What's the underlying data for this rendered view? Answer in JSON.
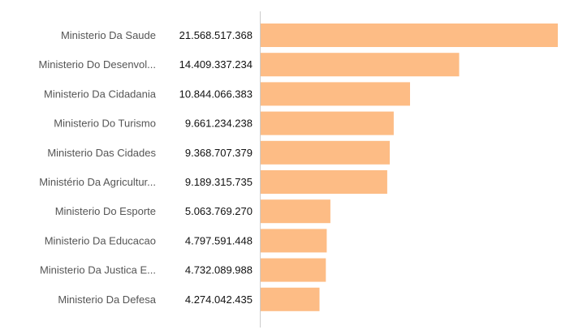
{
  "chart_data": {
    "type": "bar",
    "orientation": "horizontal",
    "categories": [
      "Ministerio Da Saude",
      "Ministerio Do Desenvol...",
      "Ministerio Da Cidadania",
      "Ministerio Do Turismo",
      "Ministerio Das Cidades",
      "Ministério Da Agricultur...",
      "Ministerio Do Esporte",
      "Ministerio Da Educacao",
      "Ministerio Da Justica E...",
      "Ministerio Da Defesa"
    ],
    "values": [
      21568517368,
      14409337234,
      10844066383,
      9661234238,
      9368707379,
      9189315735,
      5063769270,
      4797591448,
      4732089988,
      4274042435
    ],
    "value_labels": [
      "21.568.517.368",
      "14.409.337.234",
      "10.844.066.383",
      "9.661.234.238",
      "9.368.707.379",
      "9.189.315.735",
      "5.063.769.270",
      "4.797.591.448",
      "4.732.089.988",
      "4.274.042.435"
    ],
    "title": "",
    "xlabel": "",
    "ylabel": "",
    "xlim": [
      0,
      21568517368
    ],
    "grid": false,
    "bar_color": "#FDBC85",
    "axis_color": "#CCCCCC"
  }
}
